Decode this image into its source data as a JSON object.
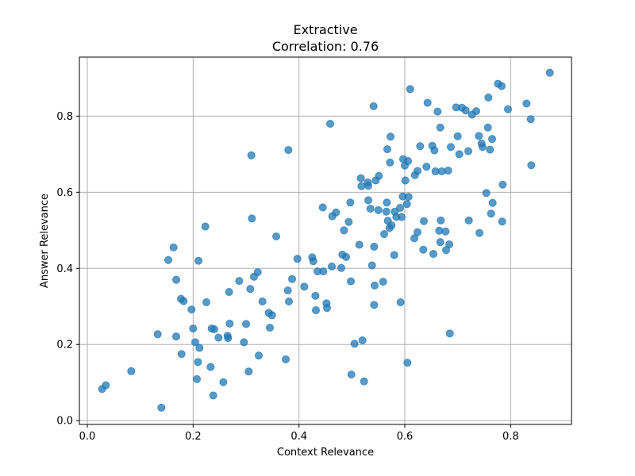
{
  "chart_data": {
    "type": "scatter",
    "title": "Extractive",
    "subtitle": "Correlation: 0.76",
    "xlabel": "Context Relevance",
    "ylabel": "Answer Relevance",
    "xlim": [
      -0.015,
      0.915
    ],
    "ylim": [
      -0.01,
      0.955
    ],
    "xticks": [
      0.0,
      0.2,
      0.4,
      0.6,
      0.8
    ],
    "xtick_labels": [
      "0.0",
      "0.2",
      "0.4",
      "0.6",
      "0.8"
    ],
    "yticks": [
      0.0,
      0.2,
      0.4,
      0.6,
      0.8
    ],
    "ytick_labels": [
      "0.0",
      "0.2",
      "0.4",
      "0.6",
      "0.8"
    ],
    "grid": true,
    "marker_color": "#1f77b4",
    "marker_alpha": 0.75,
    "points": [
      [
        0.028,
        0.083
      ],
      [
        0.035,
        0.093
      ],
      [
        0.083,
        0.13
      ],
      [
        0.133,
        0.227
      ],
      [
        0.14,
        0.034
      ],
      [
        0.153,
        0.422
      ],
      [
        0.163,
        0.455
      ],
      [
        0.168,
        0.37
      ],
      [
        0.168,
        0.221
      ],
      [
        0.177,
        0.32
      ],
      [
        0.178,
        0.175
      ],
      [
        0.182,
        0.314
      ],
      [
        0.197,
        0.292
      ],
      [
        0.2,
        0.242
      ],
      [
        0.204,
        0.206
      ],
      [
        0.207,
        0.109
      ],
      [
        0.209,
        0.154
      ],
      [
        0.21,
        0.42
      ],
      [
        0.212,
        0.191
      ],
      [
        0.223,
        0.51
      ],
      [
        0.225,
        0.311
      ],
      [
        0.233,
        0.141
      ],
      [
        0.235,
        0.242
      ],
      [
        0.238,
        0.066
      ],
      [
        0.24,
        0.24
      ],
      [
        0.248,
        0.218
      ],
      [
        0.257,
        0.101
      ],
      [
        0.265,
        0.223
      ],
      [
        0.266,
        0.217
      ],
      [
        0.268,
        0.338
      ],
      [
        0.269,
        0.255
      ],
      [
        0.287,
        0.367
      ],
      [
        0.296,
        0.206
      ],
      [
        0.3,
        0.254
      ],
      [
        0.305,
        0.129
      ],
      [
        0.308,
        0.346
      ],
      [
        0.31,
        0.697
      ],
      [
        0.311,
        0.531
      ],
      [
        0.315,
        0.378
      ],
      [
        0.322,
        0.39
      ],
      [
        0.324,
        0.171
      ],
      [
        0.331,
        0.313
      ],
      [
        0.343,
        0.283
      ],
      [
        0.345,
        0.244
      ],
      [
        0.349,
        0.277
      ],
      [
        0.357,
        0.484
      ],
      [
        0.375,
        0.161
      ],
      [
        0.379,
        0.342
      ],
      [
        0.38,
        0.711
      ],
      [
        0.381,
        0.313
      ],
      [
        0.387,
        0.372
      ],
      [
        0.397,
        0.425
      ],
      [
        0.41,
        0.352
      ],
      [
        0.425,
        0.429
      ],
      [
        0.427,
        0.419
      ],
      [
        0.431,
        0.328
      ],
      [
        0.432,
        0.29
      ],
      [
        0.435,
        0.392
      ],
      [
        0.445,
        0.56
      ],
      [
        0.446,
        0.392
      ],
      [
        0.452,
        0.308
      ],
      [
        0.453,
        0.296
      ],
      [
        0.459,
        0.78
      ],
      [
        0.462,
        0.405
      ],
      [
        0.463,
        0.537
      ],
      [
        0.47,
        0.547
      ],
      [
        0.48,
        0.401
      ],
      [
        0.482,
        0.436
      ],
      [
        0.485,
        0.5
      ],
      [
        0.489,
        0.43
      ],
      [
        0.494,
        0.522
      ],
      [
        0.497,
        0.573
      ],
      [
        0.498,
        0.366
      ],
      [
        0.499,
        0.121
      ],
      [
        0.505,
        0.202
      ],
      [
        0.514,
        0.462
      ],
      [
        0.517,
        0.637
      ],
      [
        0.518,
        0.616
      ],
      [
        0.52,
        0.211
      ],
      [
        0.523,
        0.103
      ],
      [
        0.53,
        0.626
      ],
      [
        0.531,
        0.617
      ],
      [
        0.531,
        0.579
      ],
      [
        0.535,
        0.557
      ],
      [
        0.538,
        0.408
      ],
      [
        0.541,
        0.826
      ],
      [
        0.542,
        0.457
      ],
      [
        0.542,
        0.304
      ],
      [
        0.543,
        0.355
      ],
      [
        0.545,
        0.631
      ],
      [
        0.55,
        0.553
      ],
      [
        0.551,
        0.643
      ],
      [
        0.559,
        0.365
      ],
      [
        0.561,
        0.49
      ],
      [
        0.565,
        0.549
      ],
      [
        0.566,
        0.573
      ],
      [
        0.567,
        0.713
      ],
      [
        0.568,
        0.525
      ],
      [
        0.571,
        0.506
      ],
      [
        0.572,
        0.678
      ],
      [
        0.573,
        0.746
      ],
      [
        0.575,
        0.513
      ],
      [
        0.58,
        0.435
      ],
      [
        0.581,
        0.549
      ],
      [
        0.584,
        0.535
      ],
      [
        0.591,
        0.559
      ],
      [
        0.592,
        0.311
      ],
      [
        0.594,
        0.535
      ],
      [
        0.596,
        0.589
      ],
      [
        0.597,
        0.687
      ],
      [
        0.6,
        0.67
      ],
      [
        0.601,
        0.631
      ],
      [
        0.604,
        0.569
      ],
      [
        0.605,
        0.152
      ],
      [
        0.606,
        0.682
      ],
      [
        0.607,
        0.588
      ],
      [
        0.61,
        0.871
      ],
      [
        0.618,
        0.479
      ],
      [
        0.619,
        0.645
      ],
      [
        0.624,
        0.656
      ],
      [
        0.624,
        0.495
      ],
      [
        0.629,
        0.721
      ],
      [
        0.635,
        0.449
      ],
      [
        0.636,
        0.524
      ],
      [
        0.641,
        0.667
      ],
      [
        0.643,
        0.835
      ],
      [
        0.652,
        0.722
      ],
      [
        0.654,
        0.438
      ],
      [
        0.656,
        0.71
      ],
      [
        0.658,
        0.655
      ],
      [
        0.662,
        0.812
      ],
      [
        0.665,
        0.499
      ],
      [
        0.667,
        0.469
      ],
      [
        0.667,
        0.77
      ],
      [
        0.668,
        0.526
      ],
      [
        0.67,
        0.655
      ],
      [
        0.677,
        0.497
      ],
      [
        0.678,
        0.448
      ],
      [
        0.682,
        0.657
      ],
      [
        0.684,
        0.463
      ],
      [
        0.685,
        0.229
      ],
      [
        0.687,
        0.719
      ],
      [
        0.697,
        0.823
      ],
      [
        0.7,
        0.747
      ],
      [
        0.703,
        0.7
      ],
      [
        0.708,
        0.822
      ],
      [
        0.715,
        0.815
      ],
      [
        0.72,
        0.708
      ],
      [
        0.721,
        0.526
      ],
      [
        0.727,
        0.804
      ],
      [
        0.735,
        0.813
      ],
      [
        0.74,
        0.748
      ],
      [
        0.741,
        0.493
      ],
      [
        0.745,
        0.728
      ],
      [
        0.747,
        0.719
      ],
      [
        0.754,
        0.598
      ],
      [
        0.757,
        0.77
      ],
      [
        0.758,
        0.849
      ],
      [
        0.761,
        0.712
      ],
      [
        0.763,
        0.544
      ],
      [
        0.765,
        0.74
      ],
      [
        0.766,
        0.572
      ],
      [
        0.776,
        0.885
      ],
      [
        0.783,
        0.879
      ],
      [
        0.784,
        0.523
      ],
      [
        0.785,
        0.62
      ],
      [
        0.795,
        0.818
      ],
      [
        0.83,
        0.833
      ],
      [
        0.838,
        0.792
      ],
      [
        0.839,
        0.671
      ],
      [
        0.874,
        0.914
      ]
    ]
  }
}
